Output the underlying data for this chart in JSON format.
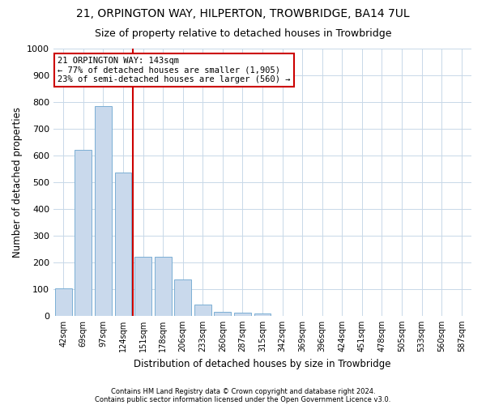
{
  "title1": "21, ORPINGTON WAY, HILPERTON, TROWBRIDGE, BA14 7UL",
  "title2": "Size of property relative to detached houses in Trowbridge",
  "xlabel": "Distribution of detached houses by size in Trowbridge",
  "ylabel": "Number of detached properties",
  "categories": [
    "42sqm",
    "69sqm",
    "97sqm",
    "124sqm",
    "151sqm",
    "178sqm",
    "206sqm",
    "233sqm",
    "260sqm",
    "287sqm",
    "315sqm",
    "342sqm",
    "369sqm",
    "396sqm",
    "424sqm",
    "451sqm",
    "478sqm",
    "505sqm",
    "533sqm",
    "560sqm",
    "587sqm"
  ],
  "values": [
    102,
    620,
    785,
    535,
    220,
    220,
    135,
    42,
    15,
    12,
    10,
    0,
    0,
    0,
    0,
    0,
    0,
    0,
    0,
    0,
    0
  ],
  "bar_color": "#c9d9ec",
  "bar_edgecolor": "#7bafd4",
  "vline_color": "#cc0000",
  "annotation_text": "21 ORPINGTON WAY: 143sqm\n← 77% of detached houses are smaller (1,905)\n23% of semi-detached houses are larger (560) →",
  "annotation_box_edgecolor": "#cc0000",
  "annotation_box_facecolor": "#ffffff",
  "ylim": [
    0,
    1000
  ],
  "yticks": [
    0,
    100,
    200,
    300,
    400,
    500,
    600,
    700,
    800,
    900,
    1000
  ],
  "footer1": "Contains HM Land Registry data © Crown copyright and database right 2024.",
  "footer2": "Contains public sector information licensed under the Open Government Licence v3.0.",
  "bg_color": "#ffffff",
  "grid_color": "#c8d8e8",
  "title1_fontsize": 10,
  "title2_fontsize": 9,
  "xlabel_fontsize": 8.5,
  "ylabel_fontsize": 8.5,
  "footer_fontsize": 6.0
}
